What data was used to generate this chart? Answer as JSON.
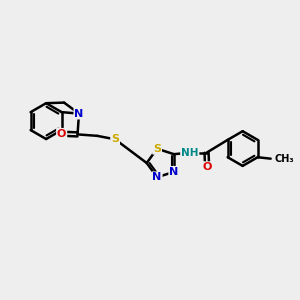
{
  "background_color": "#eeeeee",
  "atom_colors": {
    "C": "#000000",
    "N": "#0000cc",
    "O": "#dd0000",
    "S": "#ccaa00",
    "H": "#008888"
  },
  "bond_color": "#000000",
  "bond_width": 1.8,
  "xlim": [
    0,
    10
  ],
  "ylim": [
    2,
    9
  ]
}
